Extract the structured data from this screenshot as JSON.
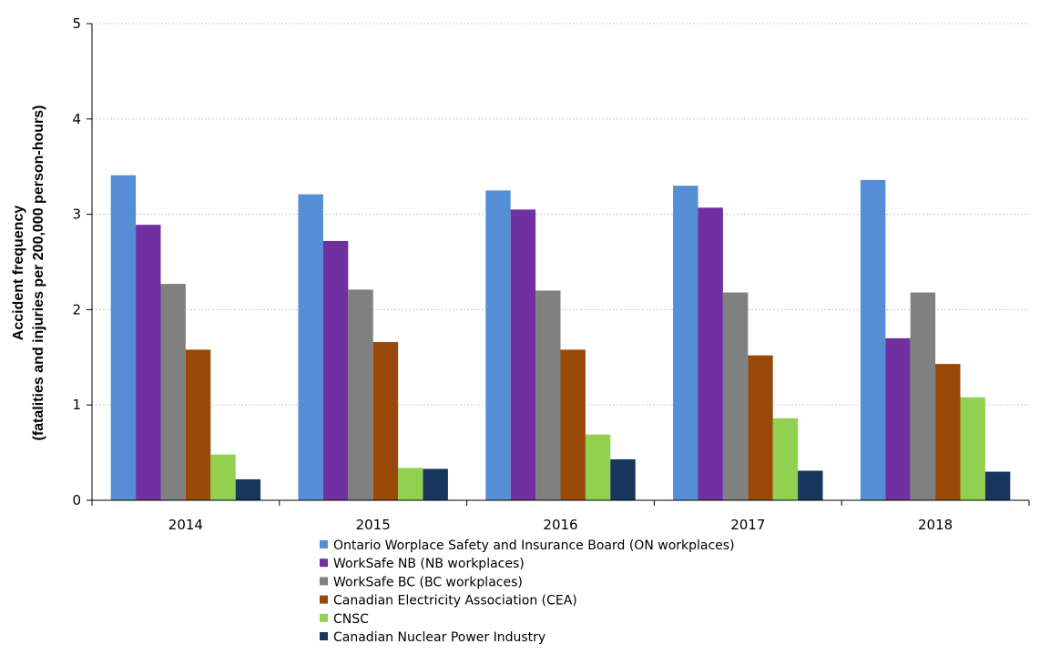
{
  "chart_data": {
    "type": "bar",
    "title": "",
    "xlabel": "",
    "ylabel_lines": [
      "Accident frequency",
      "(fatalities and injuries per 200,000 person-hours)"
    ],
    "categories": [
      "2014",
      "2015",
      "2016",
      "2017",
      "2018"
    ],
    "ylim": [
      0,
      5
    ],
    "yticks": [
      "0",
      "1",
      "2",
      "3",
      "4",
      "5"
    ],
    "grid": true,
    "legend_position": "bottom",
    "series": [
      {
        "name": "Ontario Worplace Safety and Insurance Board (ON workplaces)",
        "color": "#558ed5",
        "values": [
          3.41,
          3.21,
          3.25,
          3.3,
          3.36
        ]
      },
      {
        "name": "WorkSafe NB (NB workplaces)",
        "color": "#7030a0",
        "values": [
          2.89,
          2.72,
          3.05,
          3.07,
          1.7
        ]
      },
      {
        "name": "WorkSafe BC (BC workplaces)",
        "color": "#808080",
        "values": [
          2.27,
          2.21,
          2.2,
          2.18,
          2.18
        ]
      },
      {
        "name": "Canadian Electricity Association (CEA)",
        "color": "#984807",
        "values": [
          1.58,
          1.66,
          1.58,
          1.52,
          1.43
        ]
      },
      {
        "name": "CNSC",
        "color": "#92d050",
        "values": [
          0.48,
          0.34,
          0.69,
          0.86,
          1.08
        ]
      },
      {
        "name": "Canadian Nuclear Power Industry",
        "color": "#17375e",
        "values": [
          0.22,
          0.33,
          0.43,
          0.31,
          0.3
        ]
      }
    ]
  }
}
